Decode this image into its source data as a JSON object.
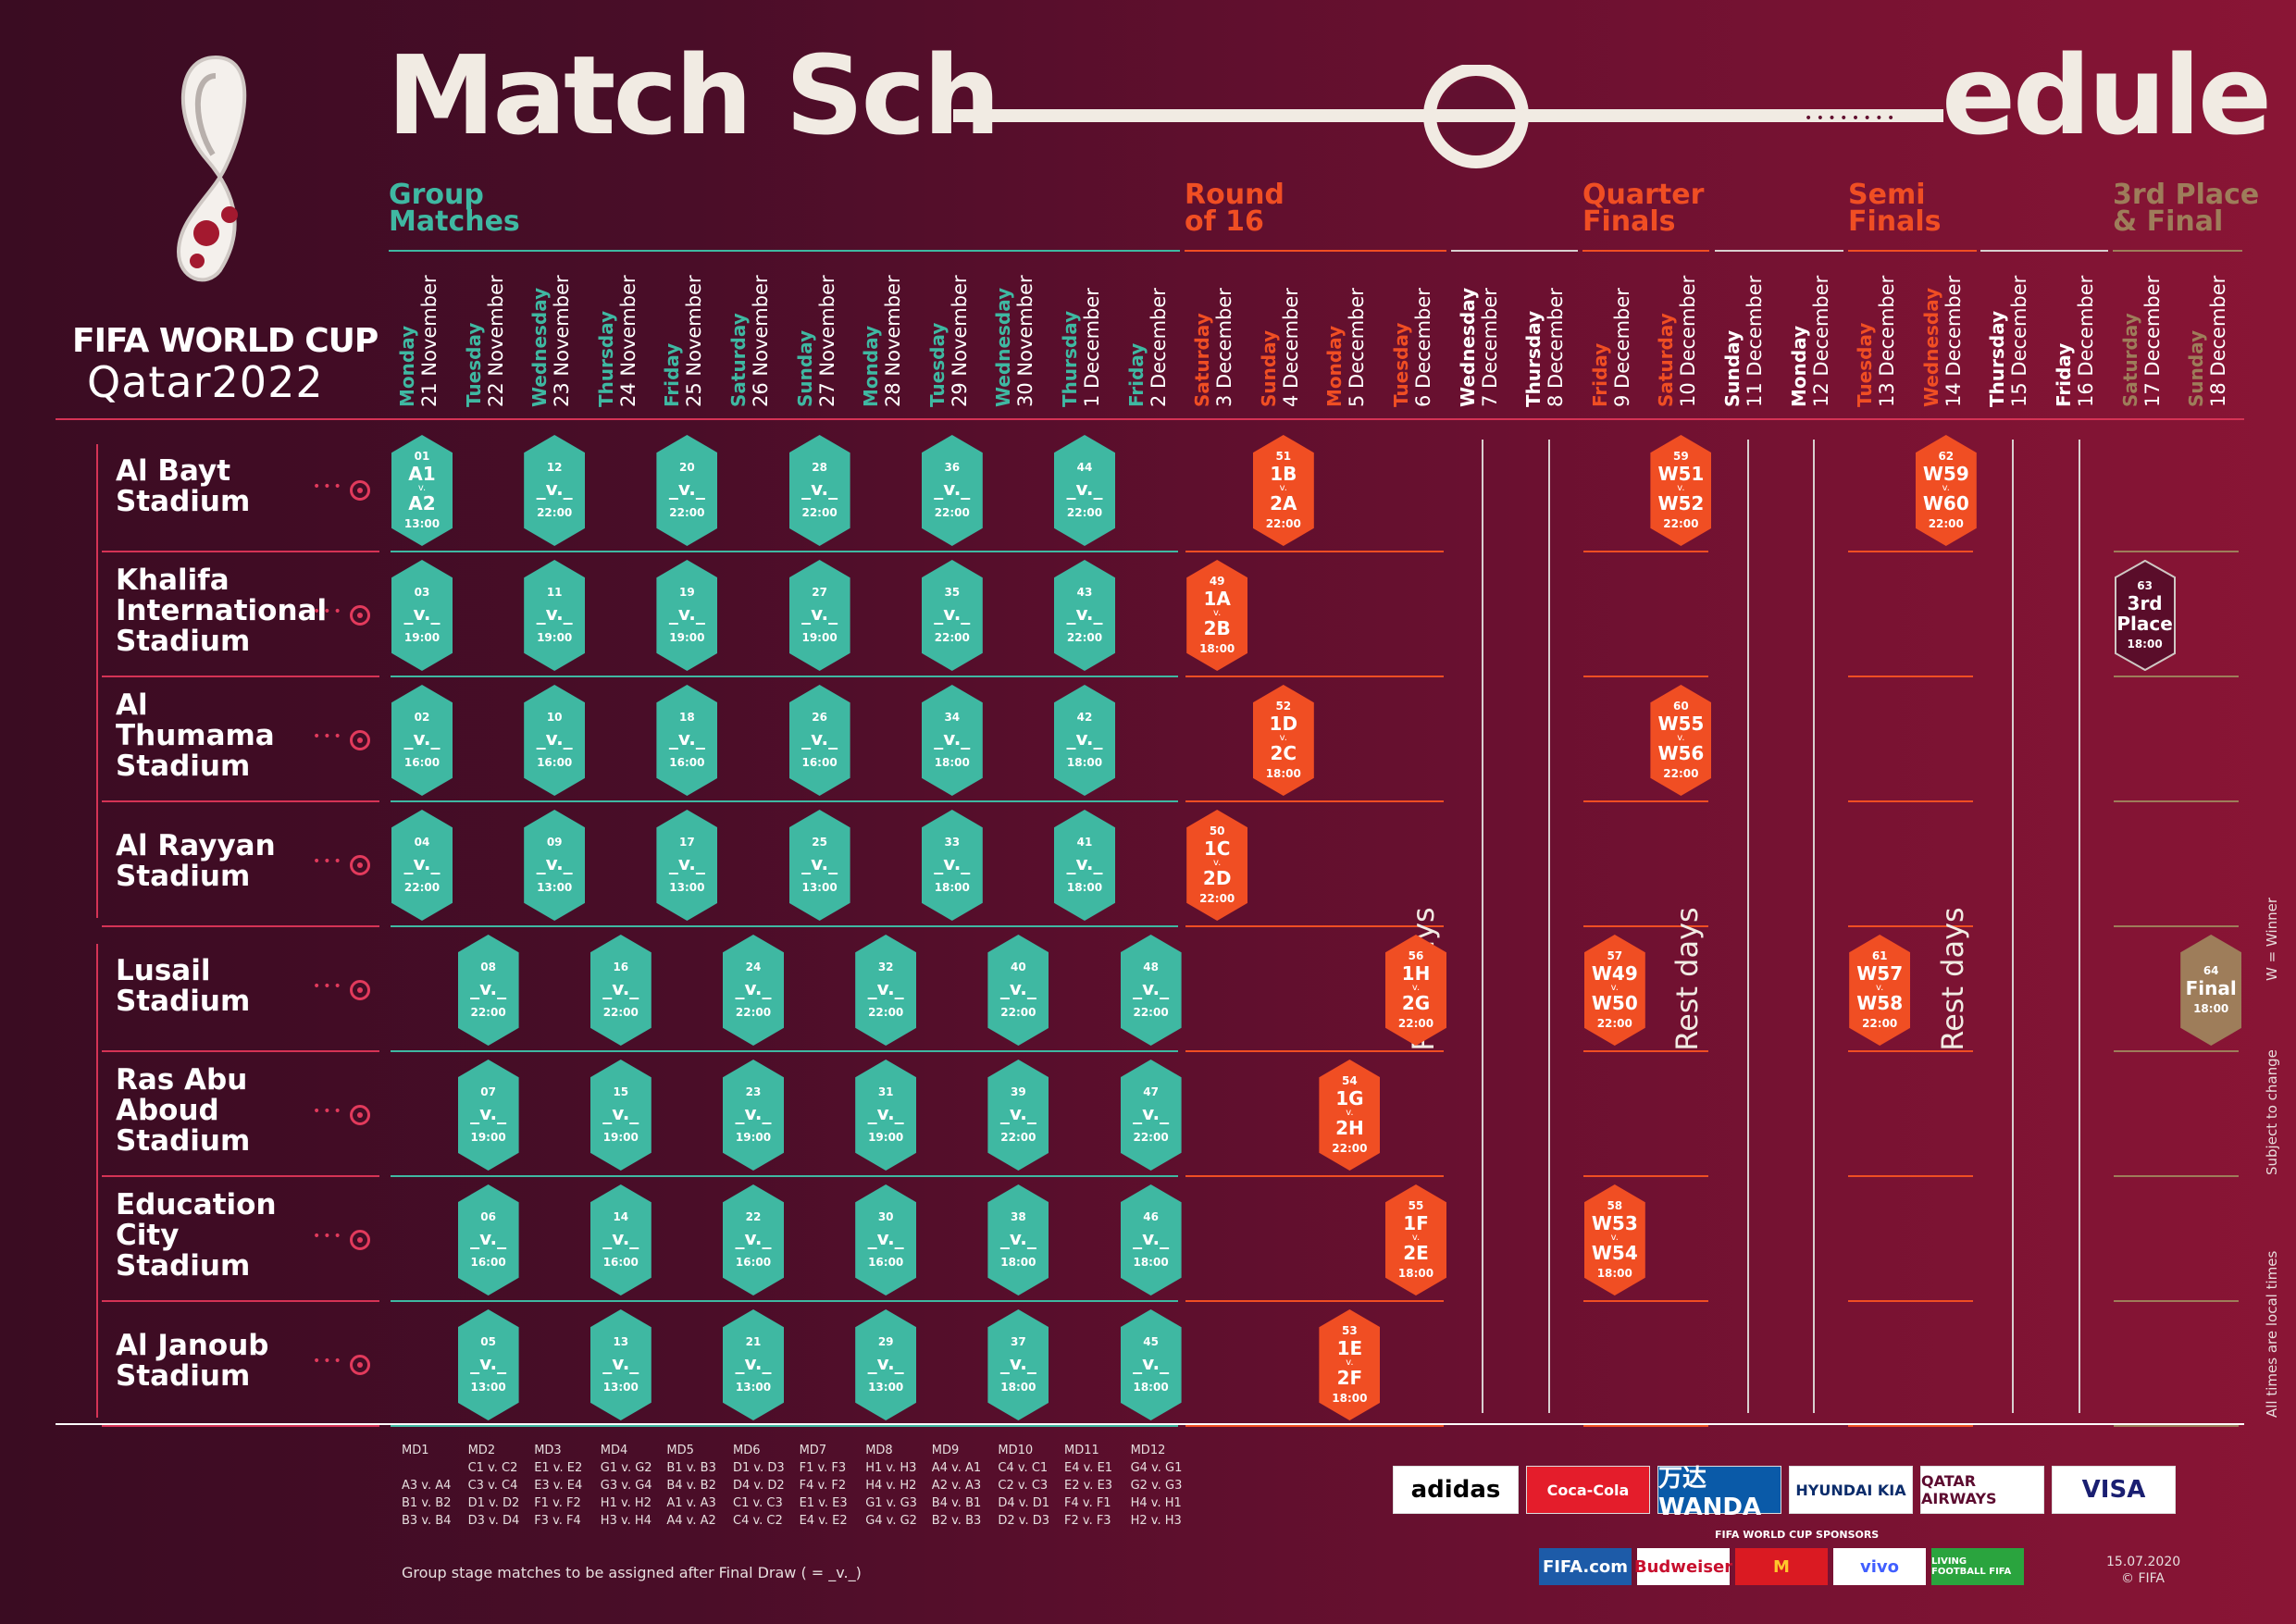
{
  "title": {
    "left": "Match Sch",
    "right": "edule"
  },
  "brand": {
    "line1": "FIFA WORLD CUP",
    "line2": "Qatar2022"
  },
  "phases": [
    {
      "id": "group",
      "label": "Group\nMatches",
      "color": "#3fb8a2"
    },
    {
      "id": "r16",
      "label": "Round\nof 16",
      "color": "#f04e23"
    },
    {
      "id": "qf",
      "label": "Quarter\nFinals",
      "color": "#f04e23"
    },
    {
      "id": "sf",
      "label": "Semi\nFinals",
      "color": "#f04e23"
    },
    {
      "id": "final",
      "label": "3rd Place\n& Final",
      "color": "#9e7d5a"
    }
  ],
  "days": [
    {
      "day": "Monday",
      "date": "21 November",
      "type": "group"
    },
    {
      "day": "Tuesday",
      "date": "22 November",
      "type": "group"
    },
    {
      "day": "Wednesday",
      "date": "23 November",
      "type": "group"
    },
    {
      "day": "Thursday",
      "date": "24 November",
      "type": "group"
    },
    {
      "day": "Friday",
      "date": "25 November",
      "type": "group"
    },
    {
      "day": "Saturday",
      "date": "26 November",
      "type": "group"
    },
    {
      "day": "Sunday",
      "date": "27 November",
      "type": "group"
    },
    {
      "day": "Monday",
      "date": "28 November",
      "type": "group"
    },
    {
      "day": "Tuesday",
      "date": "29 November",
      "type": "group"
    },
    {
      "day": "Wednesday",
      "date": "30 November",
      "type": "group"
    },
    {
      "day": "Thursday",
      "date": "1 December",
      "type": "group"
    },
    {
      "day": "Friday",
      "date": "2 December",
      "type": "group"
    },
    {
      "day": "Saturday",
      "date": "3 December",
      "type": "ko"
    },
    {
      "day": "Sunday",
      "date": "4 December",
      "type": "ko"
    },
    {
      "day": "Monday",
      "date": "5 December",
      "type": "ko"
    },
    {
      "day": "Tuesday",
      "date": "6 December",
      "type": "ko"
    },
    {
      "day": "Wednesday",
      "date": "7 December",
      "type": "rest"
    },
    {
      "day": "Thursday",
      "date": "8 December",
      "type": "rest"
    },
    {
      "day": "Friday",
      "date": "9 December",
      "type": "ko"
    },
    {
      "day": "Saturday",
      "date": "10 December",
      "type": "ko"
    },
    {
      "day": "Sunday",
      "date": "11 December",
      "type": "rest"
    },
    {
      "day": "Monday",
      "date": "12 December",
      "type": "rest"
    },
    {
      "day": "Tuesday",
      "date": "13 December",
      "type": "ko"
    },
    {
      "day": "Wednesday",
      "date": "14 December",
      "type": "ko"
    },
    {
      "day": "Thursday",
      "date": "15 December",
      "type": "rest"
    },
    {
      "day": "Friday",
      "date": "16 December",
      "type": "rest"
    },
    {
      "day": "Saturday",
      "date": "17 December",
      "type": "fin"
    },
    {
      "day": "Sunday",
      "date": "18 December",
      "type": "fin"
    }
  ],
  "stadiums": [
    "Al Bayt\nStadium",
    "Khalifa\nInternational\nStadium",
    "Al\nThumama\nStadium",
    "Al Rayyan\nStadium",
    "Lusail\nStadium",
    "Ras Abu\nAboud\nStadium",
    "Education\nCity\nStadium",
    "Al Janoub\nStadium"
  ],
  "matches": [
    {
      "n": "01",
      "s": 0,
      "d": 0,
      "a": "A1",
      "b": "A2",
      "t": "13:00",
      "k": "g"
    },
    {
      "n": "12",
      "s": 0,
      "d": 2,
      "t": "22:00",
      "k": "g"
    },
    {
      "n": "20",
      "s": 0,
      "d": 4,
      "t": "22:00",
      "k": "g"
    },
    {
      "n": "28",
      "s": 0,
      "d": 6,
      "t": "22:00",
      "k": "g"
    },
    {
      "n": "36",
      "s": 0,
      "d": 8,
      "t": "22:00",
      "k": "g"
    },
    {
      "n": "44",
      "s": 0,
      "d": 10,
      "t": "22:00",
      "k": "g"
    },
    {
      "n": "03",
      "s": 1,
      "d": 0,
      "t": "19:00",
      "k": "g"
    },
    {
      "n": "11",
      "s": 1,
      "d": 2,
      "t": "19:00",
      "k": "g"
    },
    {
      "n": "19",
      "s": 1,
      "d": 4,
      "t": "19:00",
      "k": "g"
    },
    {
      "n": "27",
      "s": 1,
      "d": 6,
      "t": "19:00",
      "k": "g"
    },
    {
      "n": "35",
      "s": 1,
      "d": 8,
      "t": "22:00",
      "k": "g"
    },
    {
      "n": "43",
      "s": 1,
      "d": 10,
      "t": "22:00",
      "k": "g"
    },
    {
      "n": "02",
      "s": 2,
      "d": 0,
      "t": "16:00",
      "k": "g"
    },
    {
      "n": "10",
      "s": 2,
      "d": 2,
      "t": "16:00",
      "k": "g"
    },
    {
      "n": "18",
      "s": 2,
      "d": 4,
      "t": "16:00",
      "k": "g"
    },
    {
      "n": "26",
      "s": 2,
      "d": 6,
      "t": "16:00",
      "k": "g"
    },
    {
      "n": "34",
      "s": 2,
      "d": 8,
      "t": "18:00",
      "k": "g"
    },
    {
      "n": "42",
      "s": 2,
      "d": 10,
      "t": "18:00",
      "k": "g"
    },
    {
      "n": "04",
      "s": 3,
      "d": 0,
      "t": "22:00",
      "k": "g"
    },
    {
      "n": "09",
      "s": 3,
      "d": 2,
      "t": "13:00",
      "k": "g"
    },
    {
      "n": "17",
      "s": 3,
      "d": 4,
      "t": "13:00",
      "k": "g"
    },
    {
      "n": "25",
      "s": 3,
      "d": 6,
      "t": "13:00",
      "k": "g"
    },
    {
      "n": "33",
      "s": 3,
      "d": 8,
      "t": "18:00",
      "k": "g"
    },
    {
      "n": "41",
      "s": 3,
      "d": 10,
      "t": "18:00",
      "k": "g"
    },
    {
      "n": "08",
      "s": 4,
      "d": 1,
      "t": "22:00",
      "k": "g"
    },
    {
      "n": "16",
      "s": 4,
      "d": 3,
      "t": "22:00",
      "k": "g"
    },
    {
      "n": "24",
      "s": 4,
      "d": 5,
      "t": "22:00",
      "k": "g"
    },
    {
      "n": "32",
      "s": 4,
      "d": 7,
      "t": "22:00",
      "k": "g"
    },
    {
      "n": "40",
      "s": 4,
      "d": 9,
      "t": "22:00",
      "k": "g"
    },
    {
      "n": "48",
      "s": 4,
      "d": 11,
      "t": "22:00",
      "k": "g"
    },
    {
      "n": "07",
      "s": 5,
      "d": 1,
      "t": "19:00",
      "k": "g"
    },
    {
      "n": "15",
      "s": 5,
      "d": 3,
      "t": "19:00",
      "k": "g"
    },
    {
      "n": "23",
      "s": 5,
      "d": 5,
      "t": "19:00",
      "k": "g"
    },
    {
      "n": "31",
      "s": 5,
      "d": 7,
      "t": "19:00",
      "k": "g"
    },
    {
      "n": "39",
      "s": 5,
      "d": 9,
      "t": "22:00",
      "k": "g"
    },
    {
      "n": "47",
      "s": 5,
      "d": 11,
      "t": "22:00",
      "k": "g"
    },
    {
      "n": "06",
      "s": 6,
      "d": 1,
      "t": "16:00",
      "k": "g"
    },
    {
      "n": "14",
      "s": 6,
      "d": 3,
      "t": "16:00",
      "k": "g"
    },
    {
      "n": "22",
      "s": 6,
      "d": 5,
      "t": "16:00",
      "k": "g"
    },
    {
      "n": "30",
      "s": 6,
      "d": 7,
      "t": "16:00",
      "k": "g"
    },
    {
      "n": "38",
      "s": 6,
      "d": 9,
      "t": "18:00",
      "k": "g"
    },
    {
      "n": "46",
      "s": 6,
      "d": 11,
      "t": "18:00",
      "k": "g"
    },
    {
      "n": "05",
      "s": 7,
      "d": 1,
      "t": "13:00",
      "k": "g"
    },
    {
      "n": "13",
      "s": 7,
      "d": 3,
      "t": "13:00",
      "k": "g"
    },
    {
      "n": "21",
      "s": 7,
      "d": 5,
      "t": "13:00",
      "k": "g"
    },
    {
      "n": "29",
      "s": 7,
      "d": 7,
      "t": "13:00",
      "k": "g"
    },
    {
      "n": "37",
      "s": 7,
      "d": 9,
      "t": "18:00",
      "k": "g"
    },
    {
      "n": "45",
      "s": 7,
      "d": 11,
      "t": "18:00",
      "k": "g"
    },
    {
      "n": "51",
      "s": 0,
      "d": 13,
      "a": "1B",
      "b": "2A",
      "t": "22:00",
      "k": "k"
    },
    {
      "n": "49",
      "s": 1,
      "d": 12,
      "a": "1A",
      "b": "2B",
      "t": "18:00",
      "k": "k"
    },
    {
      "n": "52",
      "s": 2,
      "d": 13,
      "a": "1D",
      "b": "2C",
      "t": "18:00",
      "k": "k"
    },
    {
      "n": "50",
      "s": 3,
      "d": 12,
      "a": "1C",
      "b": "2D",
      "t": "22:00",
      "k": "k"
    },
    {
      "n": "56",
      "s": 4,
      "d": 15,
      "a": "1H",
      "b": "2G",
      "t": "22:00",
      "k": "k"
    },
    {
      "n": "54",
      "s": 5,
      "d": 14,
      "a": "1G",
      "b": "2H",
      "t": "22:00",
      "k": "k"
    },
    {
      "n": "55",
      "s": 6,
      "d": 15,
      "a": "1F",
      "b": "2E",
      "t": "18:00",
      "k": "k"
    },
    {
      "n": "53",
      "s": 7,
      "d": 14,
      "a": "1E",
      "b": "2F",
      "t": "18:00",
      "k": "k"
    },
    {
      "n": "59",
      "s": 0,
      "d": 19,
      "a": "W51",
      "b": "W52",
      "t": "22:00",
      "k": "k"
    },
    {
      "n": "60",
      "s": 2,
      "d": 19,
      "a": "W55",
      "b": "W56",
      "t": "22:00",
      "k": "k"
    },
    {
      "n": "57",
      "s": 4,
      "d": 18,
      "a": "W49",
      "b": "W50",
      "t": "22:00",
      "k": "k"
    },
    {
      "n": "58",
      "s": 6,
      "d": 18,
      "a": "W53",
      "b": "W54",
      "t": "18:00",
      "k": "k"
    },
    {
      "n": "62",
      "s": 0,
      "d": 23,
      "a": "W59",
      "b": "W60",
      "t": "22:00",
      "k": "k"
    },
    {
      "n": "61",
      "s": 4,
      "d": 22,
      "a": "W57",
      "b": "W58",
      "t": "22:00",
      "k": "k"
    },
    {
      "n": "63",
      "s": 1,
      "d": 26,
      "a": "3rd",
      "b": "Place",
      "t": "18:00",
      "k": "t",
      "label": true
    },
    {
      "n": "64",
      "s": 4,
      "d": 27,
      "a": "Final",
      "t": "18:00",
      "k": "f",
      "label": true
    }
  ],
  "placeholder": "_v._",
  "versus": "v.",
  "rest_label": "Rest days",
  "matchdays": [
    {
      "md": "MD1",
      "g": "\nA3 v. A4\nB1 v. B2\nB3 v. B4"
    },
    {
      "md": "MD2",
      "g": "C1 v. C2\nC3 v. C4\nD1 v. D2\nD3 v. D4"
    },
    {
      "md": "MD3",
      "g": "E1 v. E2\nE3 v. E4\nF1 v. F2\nF3 v. F4"
    },
    {
      "md": "MD4",
      "g": "G1 v. G2\nG3 v. G4\nH1 v. H2\nH3 v. H4"
    },
    {
      "md": "MD5",
      "g": "B1 v. B3\nB4 v. B2\nA1 v. A3\nA4 v. A2"
    },
    {
      "md": "MD6",
      "g": "D1 v. D3\nD4 v. D2\nC1 v. C3\nC4 v. C2"
    },
    {
      "md": "MD7",
      "g": "F1 v. F3\nF4 v. F2\nE1 v. E3\nE4 v. E2"
    },
    {
      "md": "MD8",
      "g": "H1 v. H3\nH4 v. H2\nG1 v. G3\nG4 v. G2"
    },
    {
      "md": "MD9",
      "g": "A4 v. A1\nA2 v. A3\nB4 v. B1\nB2 v. B3"
    },
    {
      "md": "MD10",
      "g": "C4 v. C1\nC2 v. C3\nD4 v. D1\nD2 v. D3"
    },
    {
      "md": "MD11",
      "g": "E4 v. E1\nE2 v. E3\nF4 v. F1\nF2 v. F3"
    },
    {
      "md": "MD12",
      "g": "G4 v. G1\nG2 v. G3\nH4 v. H1\nH2 v. H3"
    }
  ],
  "footnote": "Group stage matches to be assigned after Final Draw ( = _v._)",
  "side_notes": [
    "W = Winner",
    "Subject to change",
    "All times are local times"
  ],
  "sponsors_label": "FIFA WORLD CUP SPONSORS",
  "partners": [
    {
      "name": "adidas",
      "bg": "#ffffff",
      "fg": "#000000"
    },
    {
      "name": "Coca-Cola",
      "bg": "#e41d2b",
      "fg": "#ffffff"
    },
    {
      "name": "万达 WANDA",
      "bg": "#0a5aa8",
      "fg": "#ffffff"
    },
    {
      "name": "HYUNDAI  KIA",
      "bg": "#ffffff",
      "fg": "#0b2c6b"
    },
    {
      "name": "QATAR AIRWAYS",
      "bg": "#ffffff",
      "fg": "#5c0b2f"
    },
    {
      "name": "VISA",
      "bg": "#ffffff",
      "fg": "#1a1f71"
    }
  ],
  "sponsors": [
    {
      "name": "FIFA.com",
      "bg": "#1d5ba8",
      "fg": "#ffffff"
    },
    {
      "name": "Budweiser",
      "bg": "#ffffff",
      "fg": "#c8102e"
    },
    {
      "name": "M",
      "bg": "#da1a22",
      "fg": "#ffc72c"
    },
    {
      "name": "vivo",
      "bg": "#ffffff",
      "fg": "#415fff"
    },
    {
      "name": "LIVING FOOTBALL FIFA",
      "bg": "#2aa43e",
      "fg": "#ffffff"
    }
  ],
  "edition": "15.07.2020",
  "copyright": "© FIFA",
  "colors": {
    "group": "#3fb8a2",
    "knockout": "#f04e23",
    "final": "#9e7d5a",
    "rest": "#ffffff",
    "text": "#f1ebe3"
  }
}
